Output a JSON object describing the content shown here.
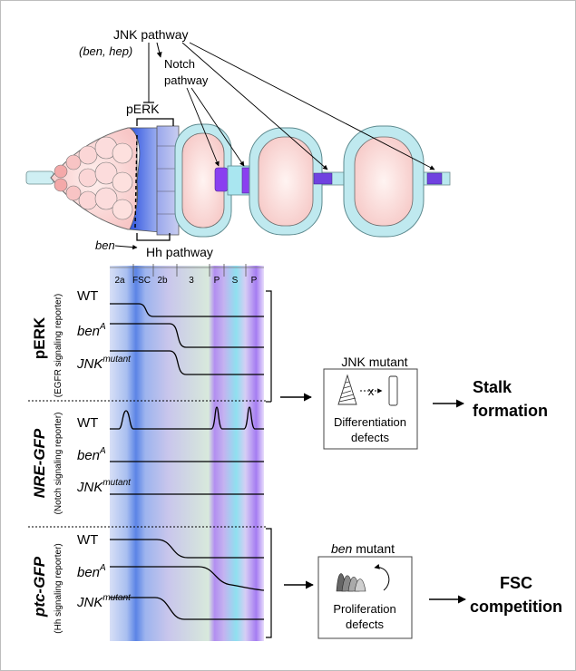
{
  "pathway_labels": {
    "jnk_pathway": "JNK pathway",
    "jnk_genes": "(ben, hep)",
    "notch_pathway_line1": "Notch",
    "notch_pathway_line2": "pathway",
    "perk": "pERK",
    "ben": "ben",
    "hh_pathway": "Hh pathway"
  },
  "region_labels": [
    "2a",
    "FSC",
    "2b",
    "3",
    "P",
    "S",
    "P"
  ],
  "panels": [
    {
      "title": "pERK",
      "subtitle": "(EGFR signaling reporter)",
      "rows": [
        {
          "label": "WT",
          "sup": ""
        },
        {
          "label": "ben",
          "sup": "A"
        },
        {
          "label": "JNK",
          "sup": "mutant"
        }
      ]
    },
    {
      "title": "NRE-GFP",
      "subtitle": "(Notch signaling reporter)",
      "rows": [
        {
          "label": "WT",
          "sup": ""
        },
        {
          "label": "ben",
          "sup": "A"
        },
        {
          "label": "JNK",
          "sup": "mutant"
        }
      ]
    },
    {
      "title": "ptc-GFP",
      "subtitle": "(Hh signaling reporter)",
      "rows": [
        {
          "label": "WT",
          "sup": ""
        },
        {
          "label": "ben",
          "sup": "A"
        },
        {
          "label": "JNK",
          "sup": "mutant"
        }
      ]
    }
  ],
  "outcomes": {
    "jnk": {
      "title": "JNK mutant",
      "line1": "Differentiation",
      "line2": "defects",
      "result_line1": "Stalk",
      "result_line2": "formation"
    },
    "ben": {
      "title_italic": "ben",
      "title_rest": " mutant",
      "line1": "Proliferation",
      "line2": "defects",
      "result_line1": "FSC",
      "result_line2": "competition"
    }
  },
  "colors": {
    "pink": "#f9d1d1",
    "cyan": "#aee3ec",
    "blue": "#4a6fe0",
    "purple": "#8a3ff0",
    "lavender": "#b9bde8"
  }
}
